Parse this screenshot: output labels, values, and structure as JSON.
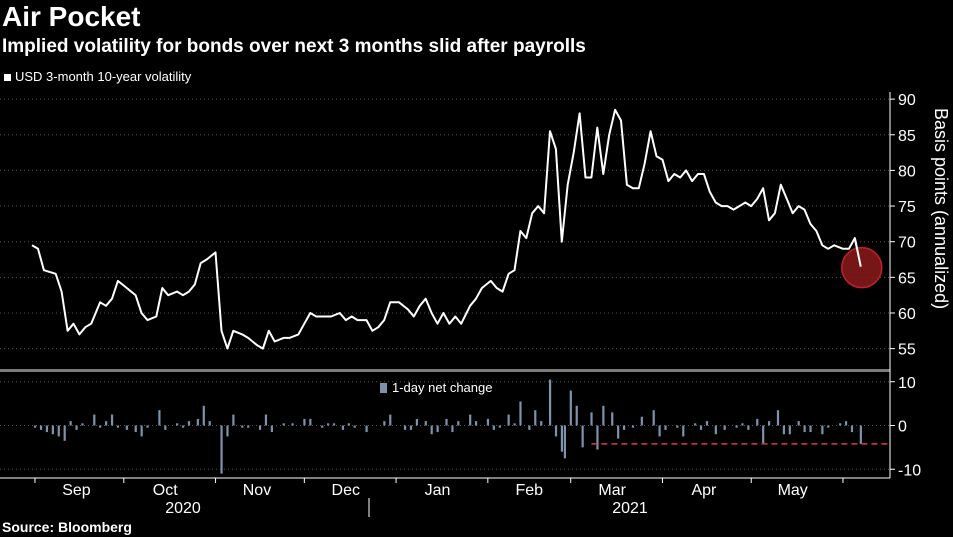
{
  "title": "Air Pocket",
  "subtitle": "Implied volatility for bonds over next 3 months slid after payrolls",
  "source": "Source: Bloomberg",
  "colors": {
    "background": "#000000",
    "line": "#ffffff",
    "bars": "#7d93ad",
    "highlight": "#8b1a1a",
    "dashed": "#e0384e",
    "grid": "#555555"
  },
  "chart_data": [
    {
      "type": "line",
      "legend": "USD 3-month 10-year volatility",
      "ylabel": "Basis points (annualized)",
      "ylim": [
        52,
        91
      ],
      "yticks": [
        55,
        60,
        65,
        70,
        75,
        80,
        85,
        90
      ],
      "x_ticks": [
        "Sep",
        "Oct",
        "Nov",
        "Dec",
        "Jan",
        "Feb",
        "Mar",
        "Apr",
        "May"
      ],
      "x_years": [
        "2020",
        "2021"
      ],
      "x_range": [
        "2020-09-01",
        "2021-06-01"
      ],
      "grid": true,
      "legend_position": "top-left",
      "highlight_circle": {
        "date": "2021-06-07",
        "value": 66.5
      },
      "series": [
        {
          "name": "USD 3-month 10-year volatility",
          "points": [
            [
              "2020-08-31",
              69.5
            ],
            [
              "2020-09-02",
              69.0
            ],
            [
              "2020-09-04",
              66.0
            ],
            [
              "2020-09-08",
              65.5
            ],
            [
              "2020-09-10",
              63.0
            ],
            [
              "2020-09-12",
              57.5
            ],
            [
              "2020-09-14",
              58.5
            ],
            [
              "2020-09-16",
              57.0
            ],
            [
              "2020-09-18",
              58.0
            ],
            [
              "2020-09-20",
              58.5
            ],
            [
              "2020-09-23",
              61.5
            ],
            [
              "2020-09-25",
              61.0
            ],
            [
              "2020-09-27",
              62.0
            ],
            [
              "2020-09-29",
              64.5
            ],
            [
              "2020-10-02",
              63.5
            ],
            [
              "2020-10-05",
              62.5
            ],
            [
              "2020-10-07",
              60.0
            ],
            [
              "2020-10-09",
              59.0
            ],
            [
              "2020-10-12",
              59.5
            ],
            [
              "2020-10-14",
              63.5
            ],
            [
              "2020-10-16",
              62.5
            ],
            [
              "2020-10-19",
              63.0
            ],
            [
              "2020-10-21",
              62.5
            ],
            [
              "2020-10-23",
              63.0
            ],
            [
              "2020-10-25",
              64.0
            ],
            [
              "2020-10-27",
              67.0
            ],
            [
              "2020-10-29",
              67.5
            ],
            [
              "2020-11-01",
              68.5
            ],
            [
              "2020-11-03",
              57.5
            ],
            [
              "2020-11-05",
              55.0
            ],
            [
              "2020-11-07",
              57.5
            ],
            [
              "2020-11-10",
              57.0
            ],
            [
              "2020-11-12",
              56.5
            ],
            [
              "2020-11-15",
              55.5
            ],
            [
              "2020-11-17",
              55.0
            ],
            [
              "2020-11-19",
              57.5
            ],
            [
              "2020-11-21",
              56.0
            ],
            [
              "2020-11-24",
              56.5
            ],
            [
              "2020-11-26",
              56.5
            ],
            [
              "2020-11-29",
              57.0
            ],
            [
              "2020-12-01",
              58.5
            ],
            [
              "2020-12-03",
              60.0
            ],
            [
              "2020-12-05",
              59.5
            ],
            [
              "2020-12-08",
              59.5
            ],
            [
              "2020-12-10",
              59.5
            ],
            [
              "2020-12-13",
              60.0
            ],
            [
              "2020-12-15",
              59.0
            ],
            [
              "2020-12-17",
              59.5
            ],
            [
              "2020-12-19",
              59.0
            ],
            [
              "2020-12-22",
              59.0
            ],
            [
              "2020-12-24",
              57.5
            ],
            [
              "2020-12-26",
              58.0
            ],
            [
              "2020-12-28",
              59.0
            ],
            [
              "2020-12-30",
              61.5
            ],
            [
              "2021-01-02",
              61.5
            ],
            [
              "2021-01-05",
              60.5
            ],
            [
              "2021-01-07",
              59.5
            ],
            [
              "2021-01-09",
              61.0
            ],
            [
              "2021-01-11",
              62.0
            ],
            [
              "2021-01-13",
              60.0
            ],
            [
              "2021-01-15",
              58.5
            ],
            [
              "2021-01-17",
              60.0
            ],
            [
              "2021-01-19",
              58.5
            ],
            [
              "2021-01-21",
              59.5
            ],
            [
              "2021-01-23",
              58.5
            ],
            [
              "2021-01-26",
              61.0
            ],
            [
              "2021-01-28",
              62.0
            ],
            [
              "2021-01-30",
              63.5
            ],
            [
              "2021-02-02",
              64.5
            ],
            [
              "2021-02-04",
              63.5
            ],
            [
              "2021-02-06",
              63.0
            ],
            [
              "2021-02-08",
              65.5
            ],
            [
              "2021-02-10",
              66.0
            ],
            [
              "2021-02-12",
              71.5
            ],
            [
              "2021-02-14",
              70.5
            ],
            [
              "2021-02-16",
              74.0
            ],
            [
              "2021-02-18",
              75.0
            ],
            [
              "2021-02-20",
              74.0
            ],
            [
              "2021-02-22",
              85.5
            ],
            [
              "2021-02-24",
              83.0
            ],
            [
              "2021-02-26",
              70.0
            ],
            [
              "2021-02-28",
              78.0
            ],
            [
              "2021-03-02",
              82.5
            ],
            [
              "2021-03-04",
              88.0
            ],
            [
              "2021-03-06",
              79.0
            ],
            [
              "2021-03-08",
              79.0
            ],
            [
              "2021-03-10",
              86.0
            ],
            [
              "2021-03-12",
              79.5
            ],
            [
              "2021-03-14",
              85.0
            ],
            [
              "2021-03-16",
              88.5
            ],
            [
              "2021-03-18",
              87.0
            ],
            [
              "2021-03-20",
              78.0
            ],
            [
              "2021-03-22",
              77.5
            ],
            [
              "2021-03-24",
              77.5
            ],
            [
              "2021-03-26",
              81.0
            ],
            [
              "2021-03-28",
              85.5
            ],
            [
              "2021-03-30",
              82.0
            ],
            [
              "2021-04-01",
              81.5
            ],
            [
              "2021-04-03",
              78.5
            ],
            [
              "2021-04-05",
              79.5
            ],
            [
              "2021-04-07",
              79.0
            ],
            [
              "2021-04-09",
              80.0
            ],
            [
              "2021-04-11",
              78.5
            ],
            [
              "2021-04-13",
              79.5
            ],
            [
              "2021-04-15",
              79.5
            ],
            [
              "2021-04-17",
              77.0
            ],
            [
              "2021-04-19",
              75.5
            ],
            [
              "2021-04-21",
              75.0
            ],
            [
              "2021-04-23",
              75.0
            ],
            [
              "2021-04-25",
              74.5
            ],
            [
              "2021-04-27",
              75.0
            ],
            [
              "2021-04-29",
              75.5
            ],
            [
              "2021-05-01",
              75.0
            ],
            [
              "2021-05-03",
              76.0
            ],
            [
              "2021-05-05",
              77.5
            ],
            [
              "2021-05-07",
              73.0
            ],
            [
              "2021-05-09",
              74.0
            ],
            [
              "2021-05-11",
              78.0
            ],
            [
              "2021-05-13",
              76.0
            ],
            [
              "2021-05-15",
              74.0
            ],
            [
              "2021-05-17",
              75.0
            ],
            [
              "2021-05-19",
              74.5
            ],
            [
              "2021-05-21",
              72.5
            ],
            [
              "2021-05-23",
              71.5
            ],
            [
              "2021-05-25",
              69.5
            ],
            [
              "2021-05-27",
              69.0
            ],
            [
              "2021-05-29",
              69.5
            ],
            [
              "2021-06-01",
              69.0
            ],
            [
              "2021-06-03",
              69.0
            ],
            [
              "2021-06-05",
              70.5
            ],
            [
              "2021-06-07",
              66.5
            ]
          ]
        }
      ]
    },
    {
      "type": "bar",
      "legend": "1-day net change",
      "ylim": [
        -12,
        12
      ],
      "yticks": [
        10,
        0,
        -10
      ],
      "x_range": [
        "2020-09-01",
        "2021-06-01"
      ],
      "reference_line": {
        "value": -4.2,
        "from": "2021-03-08",
        "to": "2021-06-07",
        "style": "dashed"
      },
      "series": [
        {
          "name": "1-day net change",
          "points": [
            [
              "2020-09-01",
              -0.5
            ],
            [
              "2020-09-03",
              -1.0
            ],
            [
              "2020-09-05",
              -1.5
            ],
            [
              "2020-09-07",
              -2.0
            ],
            [
              "2020-09-09",
              -2.5
            ],
            [
              "2020-09-11",
              -3.5
            ],
            [
              "2020-09-13",
              1.0
            ],
            [
              "2020-09-15",
              -1.0
            ],
            [
              "2020-09-17",
              0.5
            ],
            [
              "2020-09-21",
              2.5
            ],
            [
              "2020-09-23",
              -0.5
            ],
            [
              "2020-09-25",
              1.0
            ],
            [
              "2020-09-27",
              2.5
            ],
            [
              "2020-09-29",
              -0.5
            ],
            [
              "2020-10-02",
              -1.0
            ],
            [
              "2020-10-05",
              -1.5
            ],
            [
              "2020-10-07",
              -2.5
            ],
            [
              "2020-10-09",
              -0.5
            ],
            [
              "2020-10-13",
              3.5
            ],
            [
              "2020-10-15",
              -1.0
            ],
            [
              "2020-10-19",
              0.5
            ],
            [
              "2020-10-21",
              -0.5
            ],
            [
              "2020-10-23",
              1.0
            ],
            [
              "2020-10-26",
              1.5
            ],
            [
              "2020-10-28",
              4.5
            ],
            [
              "2020-10-30",
              1.0
            ],
            [
              "2020-11-03",
              -11.0
            ],
            [
              "2020-11-05",
              -2.5
            ],
            [
              "2020-11-07",
              2.5
            ],
            [
              "2020-11-10",
              -0.5
            ],
            [
              "2020-11-12",
              -0.5
            ],
            [
              "2020-11-16",
              -1.0
            ],
            [
              "2020-11-18",
              2.5
            ],
            [
              "2020-11-20",
              -1.5
            ],
            [
              "2020-11-24",
              0.5
            ],
            [
              "2020-11-27",
              0.5
            ],
            [
              "2020-12-01",
              1.5
            ],
            [
              "2020-12-03",
              1.5
            ],
            [
              "2020-12-07",
              -0.5
            ],
            [
              "2020-12-09",
              0.5
            ],
            [
              "2020-12-11",
              0.5
            ],
            [
              "2020-12-14",
              -1.0
            ],
            [
              "2020-12-16",
              0.5
            ],
            [
              "2020-12-18",
              -0.5
            ],
            [
              "2020-12-22",
              -1.5
            ],
            [
              "2020-12-28",
              1.0
            ],
            [
              "2020-12-30",
              2.5
            ],
            [
              "2021-01-04",
              -1.0
            ],
            [
              "2021-01-06",
              -1.0
            ],
            [
              "2021-01-08",
              1.5
            ],
            [
              "2021-01-11",
              1.0
            ],
            [
              "2021-01-13",
              -2.0
            ],
            [
              "2021-01-15",
              -1.5
            ],
            [
              "2021-01-18",
              1.5
            ],
            [
              "2021-01-20",
              -1.5
            ],
            [
              "2021-01-22",
              1.0
            ],
            [
              "2021-01-26",
              2.5
            ],
            [
              "2021-01-28",
              1.0
            ],
            [
              "2021-02-01",
              1.5
            ],
            [
              "2021-02-03",
              -1.0
            ],
            [
              "2021-02-05",
              -0.5
            ],
            [
              "2021-02-08",
              2.5
            ],
            [
              "2021-02-10",
              0.5
            ],
            [
              "2021-02-12",
              5.5
            ],
            [
              "2021-02-15",
              -1.0
            ],
            [
              "2021-02-17",
              3.5
            ],
            [
              "2021-02-19",
              1.0
            ],
            [
              "2021-02-22",
              10.5
            ],
            [
              "2021-02-24",
              -2.5
            ],
            [
              "2021-02-26",
              -6.0
            ],
            [
              "2021-02-27",
              -7.5
            ],
            [
              "2021-03-01",
              8.0
            ],
            [
              "2021-03-03",
              4.5
            ],
            [
              "2021-03-05",
              -5.0
            ],
            [
              "2021-03-08",
              3.0
            ],
            [
              "2021-03-10",
              -5.5
            ],
            [
              "2021-03-12",
              4.5
            ],
            [
              "2021-03-15",
              3.0
            ],
            [
              "2021-03-17",
              -3.0
            ],
            [
              "2021-03-19",
              -1.0
            ],
            [
              "2021-03-22",
              -0.5
            ],
            [
              "2021-03-25",
              2.0
            ],
            [
              "2021-03-29",
              3.5
            ],
            [
              "2021-03-31",
              -2.5
            ],
            [
              "2021-04-02",
              -1.0
            ],
            [
              "2021-04-06",
              -0.5
            ],
            [
              "2021-04-08",
              -2.5
            ],
            [
              "2021-04-12",
              0.5
            ],
            [
              "2021-04-14",
              -1.0
            ],
            [
              "2021-04-16",
              1.0
            ],
            [
              "2021-04-19",
              -2.0
            ],
            [
              "2021-04-22",
              -1.0
            ],
            [
              "2021-04-26",
              -0.5
            ],
            [
              "2021-04-28",
              0.5
            ],
            [
              "2021-04-30",
              -1.0
            ],
            [
              "2021-05-03",
              1.5
            ],
            [
              "2021-05-05",
              -4.0
            ],
            [
              "2021-05-07",
              1.0
            ],
            [
              "2021-05-10",
              3.5
            ],
            [
              "2021-05-12",
              -2.0
            ],
            [
              "2021-05-14",
              -2.0
            ],
            [
              "2021-05-17",
              1.0
            ],
            [
              "2021-05-19",
              -1.5
            ],
            [
              "2021-05-21",
              -1.5
            ],
            [
              "2021-05-25",
              -2.0
            ],
            [
              "2021-05-27",
              -0.5
            ],
            [
              "2021-05-31",
              0.5
            ],
            [
              "2021-06-02",
              1.0
            ],
            [
              "2021-06-04",
              -1.5
            ],
            [
              "2021-06-07",
              -4.2
            ]
          ]
        }
      ]
    }
  ]
}
